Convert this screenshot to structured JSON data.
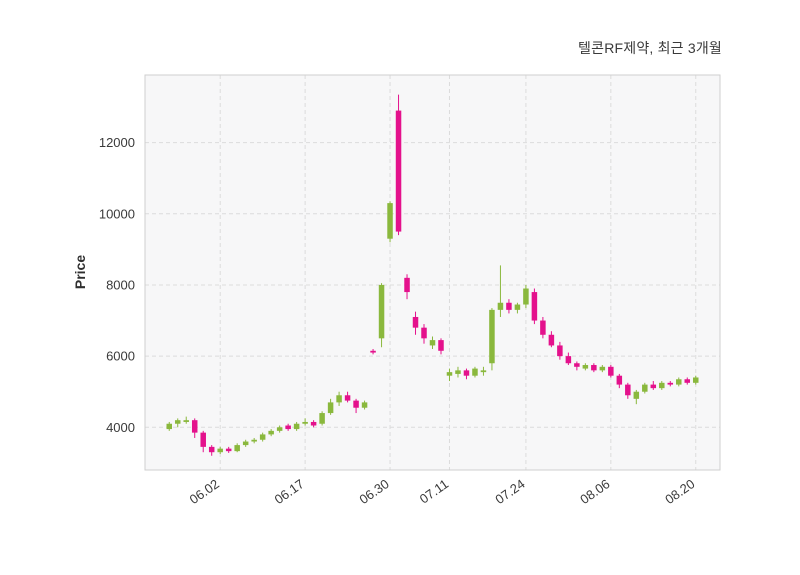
{
  "title": "텔콘RF제약, 최근 3개월",
  "axes": {
    "y_label": "Price",
    "y_ticks": [
      4000,
      6000,
      8000,
      10000,
      12000
    ],
    "x_ticks": [
      "06.02",
      "06.17",
      "06.30",
      "07.11",
      "07.24",
      "08.06",
      "08.20"
    ]
  },
  "colors": {
    "up": "#8ab83d",
    "down": "#e4118c",
    "grid": "#dcdcdc",
    "plot_bg": "#f7f7f8",
    "plot_border": "#cfcfcf",
    "text": "#3a3a3a"
  },
  "chart_data": {
    "type": "candlestick",
    "title": "텔콘RF제약, 최근 3개월",
    "ylabel": "Price",
    "ylim": [
      2800,
      13900
    ],
    "columns": [
      "date",
      "open",
      "high",
      "low",
      "close"
    ],
    "candles": [
      [
        "05.25",
        3950,
        4150,
        3900,
        4100
      ],
      [
        "05.26",
        4100,
        4250,
        4000,
        4200
      ],
      [
        "05.29",
        4150,
        4300,
        4100,
        4200
      ],
      [
        "05.30",
        4200,
        4250,
        3700,
        3850
      ],
      [
        "05.31",
        3850,
        3900,
        3300,
        3450
      ],
      [
        "06.01",
        3450,
        3500,
        3200,
        3300
      ],
      [
        "06.02",
        3300,
        3450,
        3250,
        3400
      ],
      [
        "06.05",
        3400,
        3450,
        3280,
        3330
      ],
      [
        "06.07",
        3330,
        3550,
        3300,
        3500
      ],
      [
        "06.08",
        3500,
        3650,
        3450,
        3600
      ],
      [
        "06.09",
        3600,
        3700,
        3550,
        3650
      ],
      [
        "06.12",
        3650,
        3850,
        3600,
        3800
      ],
      [
        "06.13",
        3800,
        3950,
        3750,
        3900
      ],
      [
        "06.14",
        3900,
        4050,
        3850,
        4000
      ],
      [
        "06.15",
        4050,
        4100,
        3900,
        3950
      ],
      [
        "06.16",
        3950,
        4150,
        3900,
        4100
      ],
      [
        "06.17",
        4100,
        4250,
        4050,
        4150
      ],
      [
        "06.19",
        4150,
        4200,
        4000,
        4050
      ],
      [
        "06.20",
        4100,
        4450,
        4050,
        4400
      ],
      [
        "06.21",
        4400,
        4800,
        4350,
        4700
      ],
      [
        "06.22",
        4700,
        5000,
        4600,
        4900
      ],
      [
        "06.23",
        4900,
        5000,
        4700,
        4750
      ],
      [
        "06.26",
        4750,
        4800,
        4400,
        4550
      ],
      [
        "06.27",
        4550,
        4750,
        4500,
        4700
      ],
      [
        "06.28",
        6150,
        6200,
        6050,
        6100
      ],
      [
        "06.29",
        6500,
        8050,
        6250,
        8000
      ],
      [
        "06.30",
        9300,
        10350,
        9200,
        10300
      ],
      [
        "07.03",
        12900,
        13350,
        9400,
        9500
      ],
      [
        "07.04",
        8200,
        8300,
        7600,
        7800
      ],
      [
        "07.05",
        7100,
        7250,
        6600,
        6800
      ],
      [
        "07.06",
        6800,
        6900,
        6350,
        6500
      ],
      [
        "07.07",
        6300,
        6550,
        6200,
        6450
      ],
      [
        "07.10",
        6450,
        6500,
        6050,
        6150
      ],
      [
        "07.11",
        5450,
        5650,
        5300,
        5550
      ],
      [
        "07.12",
        5500,
        5700,
        5400,
        5600
      ],
      [
        "07.13",
        5600,
        5650,
        5350,
        5450
      ],
      [
        "07.14",
        5450,
        5700,
        5400,
        5650
      ],
      [
        "07.17",
        5550,
        5700,
        5450,
        5600
      ],
      [
        "07.18",
        5800,
        7350,
        5600,
        7300
      ],
      [
        "07.19",
        7300,
        8550,
        7100,
        7500
      ],
      [
        "07.20",
        7500,
        7600,
        7200,
        7300
      ],
      [
        "07.21",
        7300,
        7500,
        7200,
        7450
      ],
      [
        "07.24",
        7450,
        8000,
        7350,
        7900
      ],
      [
        "07.25",
        7800,
        7900,
        6900,
        7000
      ],
      [
        "07.26",
        7000,
        7100,
        6500,
        6600
      ],
      [
        "07.27",
        6600,
        6700,
        6250,
        6300
      ],
      [
        "07.28",
        6300,
        6400,
        5900,
        6000
      ],
      [
        "07.31",
        6000,
        6100,
        5750,
        5800
      ],
      [
        "08.01",
        5800,
        5850,
        5600,
        5700
      ],
      [
        "08.02",
        5650,
        5800,
        5600,
        5750
      ],
      [
        "08.03",
        5750,
        5800,
        5550,
        5600
      ],
      [
        "08.04",
        5600,
        5750,
        5550,
        5700
      ],
      [
        "08.06",
        5700,
        5750,
        5400,
        5450
      ],
      [
        "08.08",
        5450,
        5500,
        5100,
        5200
      ],
      [
        "08.09",
        5200,
        5250,
        4800,
        4900
      ],
      [
        "08.10",
        4800,
        5050,
        4650,
        5000
      ],
      [
        "08.11",
        5000,
        5250,
        4950,
        5200
      ],
      [
        "08.13",
        5200,
        5300,
        5050,
        5100
      ],
      [
        "08.14",
        5100,
        5300,
        5050,
        5250
      ],
      [
        "08.16",
        5250,
        5300,
        5150,
        5200
      ],
      [
        "08.17",
        5200,
        5400,
        5150,
        5350
      ],
      [
        "08.18",
        5350,
        5400,
        5200,
        5250
      ],
      [
        "08.20",
        5250,
        5450,
        5200,
        5400
      ]
    ]
  }
}
